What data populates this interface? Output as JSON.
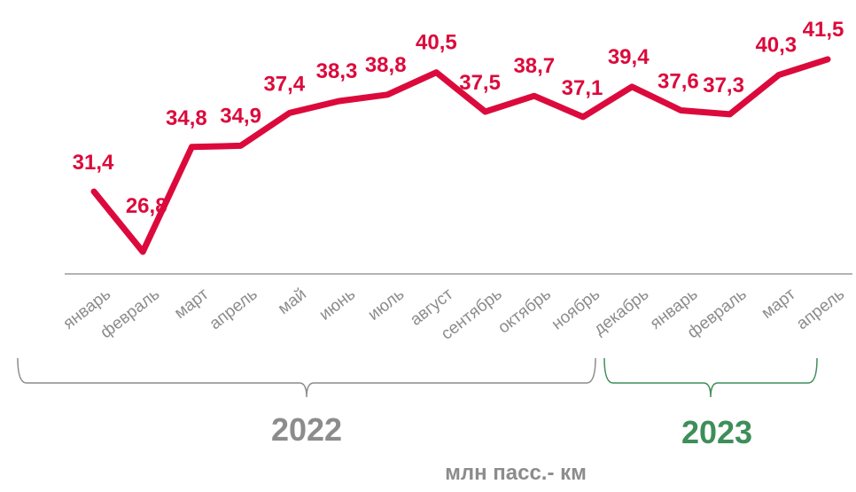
{
  "chart_data": {
    "type": "line",
    "categories": [
      "январь",
      "февраль",
      "март",
      "апрель",
      "май",
      "июнь",
      "июль",
      "август",
      "сентябрь",
      "октябрь",
      "ноябрь",
      "декабрь",
      "январь",
      "февраль",
      "март",
      "апрель"
    ],
    "series": [
      {
        "values": [
          31.4,
          26.8,
          34.8,
          34.9,
          37.4,
          38.3,
          38.8,
          40.5,
          37.5,
          38.7,
          37.1,
          39.4,
          37.6,
          37.3,
          40.3,
          41.5
        ]
      }
    ],
    "value_labels": [
      "31,4",
      "26,8",
      "34,8",
      "34,9",
      "37,4",
      "38,3",
      "38,8",
      "40,5",
      "37,5",
      "38,7",
      "37,1",
      "39,4",
      "37,6",
      "37,3",
      "40,3",
      "41,5"
    ],
    "groups": [
      {
        "label": "2022",
        "from": 0,
        "to": 11,
        "color": "#8c8c8c"
      },
      {
        "label": "2023",
        "from": 12,
        "to": 15,
        "color": "#3e8e5a"
      }
    ],
    "unit_label": "млн пасс.- км",
    "line_color": "#dc0a3c",
    "axis_color": "#8c8c8c",
    "grid": false
  }
}
